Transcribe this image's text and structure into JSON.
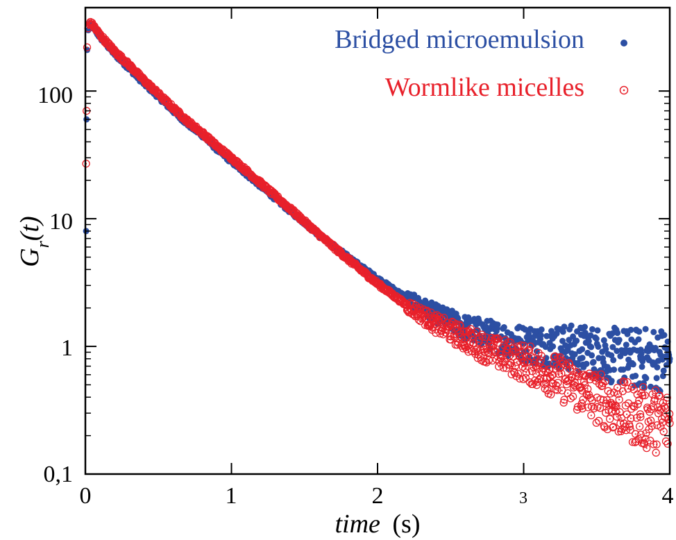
{
  "chart_data": {
    "type": "scatter",
    "xlabel_italic": "time",
    "xlabel_unit": "(s)",
    "ylabel_main": "G",
    "ylabel_sub": "r",
    "ylabel_arg": "(t)",
    "x_ticks": [
      "0",
      "1",
      "2",
      "3",
      "4"
    ],
    "y_ticks": [
      "0,1",
      "1",
      "10",
      "100"
    ],
    "xlim": [
      0,
      4
    ],
    "ylim": [
      0.1,
      450
    ],
    "y_scale": "log",
    "grid": false,
    "legend_position": "top-right",
    "series": [
      {
        "name": "Bridged microemulsion",
        "color": "#2c4fa3",
        "marker": "filled-circle",
        "points": [
          [
            0.005,
            8
          ],
          [
            0.008,
            60
          ],
          [
            0.012,
            210
          ],
          [
            0.02,
            300
          ],
          [
            0.03,
            335
          ],
          [
            0.05,
            320
          ],
          [
            0.1,
            265
          ],
          [
            0.2,
            195
          ],
          [
            0.3,
            150
          ],
          [
            0.4,
            115
          ],
          [
            0.5,
            90
          ],
          [
            0.6,
            70
          ],
          [
            0.7,
            55
          ],
          [
            0.8,
            45
          ],
          [
            0.9,
            35
          ],
          [
            1.0,
            28
          ],
          [
            1.2,
            18
          ],
          [
            1.4,
            11.5
          ],
          [
            1.6,
            7.5
          ],
          [
            1.8,
            5
          ],
          [
            2.0,
            3.4
          ],
          [
            2.2,
            2.4
          ],
          [
            2.4,
            1.8
          ],
          [
            2.6,
            1.4
          ],
          [
            2.8,
            1.2
          ],
          [
            3.0,
            1.05
          ],
          [
            3.2,
            1.0
          ],
          [
            3.4,
            0.95
          ],
          [
            3.6,
            0.85
          ],
          [
            3.8,
            0.8
          ],
          [
            4.0,
            0.8
          ]
        ]
      },
      {
        "name": "Wormlike micelles",
        "color": "#e8202a",
        "marker": "open-circle-dot",
        "points": [
          [
            0.005,
            27
          ],
          [
            0.008,
            70
          ],
          [
            0.012,
            220
          ],
          [
            0.02,
            310
          ],
          [
            0.03,
            340
          ],
          [
            0.05,
            330
          ],
          [
            0.1,
            275
          ],
          [
            0.2,
            205
          ],
          [
            0.3,
            160
          ],
          [
            0.4,
            122
          ],
          [
            0.5,
            95
          ],
          [
            0.6,
            74
          ],
          [
            0.7,
            58
          ],
          [
            0.8,
            47
          ],
          [
            0.9,
            37
          ],
          [
            1.0,
            30
          ],
          [
            1.2,
            19
          ],
          [
            1.4,
            12
          ],
          [
            1.6,
            7.5
          ],
          [
            1.8,
            4.8
          ],
          [
            2.0,
            3.1
          ],
          [
            2.2,
            2.1
          ],
          [
            2.4,
            1.5
          ],
          [
            2.6,
            1.15
          ],
          [
            2.8,
            0.9
          ],
          [
            3.0,
            0.75
          ],
          [
            3.2,
            0.6
          ],
          [
            3.4,
            0.45
          ],
          [
            3.6,
            0.35
          ],
          [
            3.8,
            0.28
          ],
          [
            4.0,
            0.25
          ]
        ]
      }
    ]
  }
}
